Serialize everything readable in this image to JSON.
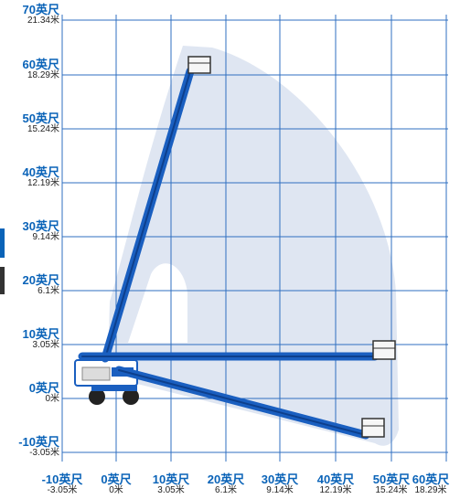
{
  "diagram": {
    "y_axis_labels": [
      {
        "ft": "70英尺",
        "m": "21.34米"
      },
      {
        "ft": "60英尺",
        "m": "18.29米"
      },
      {
        "ft": "50英尺",
        "m": "15.24米"
      },
      {
        "ft": "40英尺",
        "m": "12.19米"
      },
      {
        "ft": "30英尺",
        "m": "9.14米"
      },
      {
        "ft": "20英尺",
        "m": "6.1米"
      },
      {
        "ft": "10英尺",
        "m": "3.05米"
      },
      {
        "ft": "0英尺",
        "m": "0米"
      },
      {
        "ft": "-10英尺",
        "m": "-3.05米"
      }
    ],
    "x_axis_labels": [
      {
        "ft": "-10英尺",
        "m": "-3.05米"
      },
      {
        "ft": "0英尺",
        "m": "0米"
      },
      {
        "ft": "10英尺",
        "m": "3.05米"
      },
      {
        "ft": "20英尺",
        "m": "6.1米"
      },
      {
        "ft": "30英尺",
        "m": "9.14米"
      },
      {
        "ft": "40英尺",
        "m": "12.19米"
      },
      {
        "ft": "50英尺",
        "m": "15.24米"
      },
      {
        "ft": "60英尺",
        "m": "18.29米"
      }
    ],
    "colors": {
      "grid": "#2f6fc0",
      "envelope": "#dfe6f2",
      "boom": "#1a5fc0",
      "boom_dark": "#0d3f8c",
      "label_ft": "#0a63b8",
      "side_blue": "#0a63b8",
      "side_dark": "#333333"
    }
  }
}
